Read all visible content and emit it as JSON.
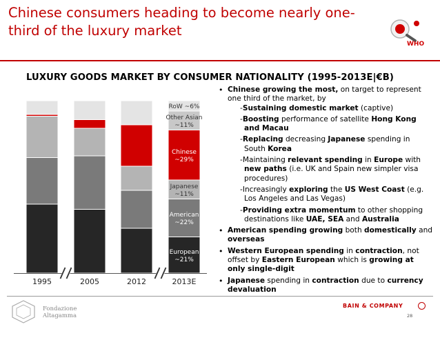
{
  "slide": {
    "title": "Chinese consumers heading to become nearly one-third of the luxury market",
    "logo_text": "WHO",
    "subtitle": "LUXURY GOODS MARKET BY CONSUMER NATIONALITY (1995-2013E|€B)",
    "foundation_line1": "Fondazione",
    "foundation_line2": "Altagamma",
    "brand": "BAIN & COMPANY",
    "page_number": "28"
  },
  "colors": {
    "accent": "#c00000",
    "european": "#262626",
    "american": "#7a7a7a",
    "japanese": "#b4b4b4",
    "chinese": "#d00000",
    "other_asian": "#c8c8c8",
    "row": "#e4e4e4"
  },
  "chart_data": {
    "type": "bar",
    "stacked": true,
    "title": "LUXURY GOODS MARKET BY CONSUMER NATIONALITY (1995-2013E|€B)",
    "categories": [
      "1995",
      "2005",
      "2012",
      "2013E"
    ],
    "axis_breaks": [
      "1995-2005",
      "2012-2013E"
    ],
    "series": [
      {
        "name": "European",
        "label": "European ~21%",
        "color": "#262626",
        "values": [
          40,
          37,
          26,
          21
        ]
      },
      {
        "name": "American",
        "label": "American ~22%",
        "color": "#7a7a7a",
        "values": [
          27,
          31,
          22,
          22
        ]
      },
      {
        "name": "Japanese",
        "label": "Japanese ~11%",
        "color": "#b4b4b4",
        "values": [
          24,
          16,
          14,
          11
        ]
      },
      {
        "name": "Chinese",
        "label": "Chinese ~29%",
        "color": "#d00000",
        "values": [
          1,
          5,
          24,
          29
        ]
      },
      {
        "name": "Other Asian",
        "label": "Other Asian ~11%",
        "color": "#c8c8c8",
        "values": [
          0,
          0,
          0,
          11
        ]
      },
      {
        "name": "RoW",
        "label": "RoW ~6%",
        "color": "#e4e4e4",
        "values": [
          8,
          11,
          14,
          6
        ]
      }
    ]
  },
  "notes": {
    "bullet1": {
      "lead": "Chinese growing the most,",
      "rest": " on target to represent one third of the market, by",
      "subs": [
        {
          "bold": "Sustaining domestic market",
          "text": " (captive)"
        },
        {
          "bold": "Boosting",
          "text": " performance of satellite ",
          "bold2": "Hong Kong and Macau"
        },
        {
          "bold": "Replacing",
          "text": " decreasing ",
          "bold2": "Japanese",
          "text2": " spending in South ",
          "bold3": "Korea"
        },
        {
          "text0": "Maintaining ",
          "bold": "relevant spending",
          "text": " in ",
          "bold2": "Europe",
          "text2": " with ",
          "bold3": "new paths",
          "text3": " (i.e. UK and Spain new simpler visa procedures)"
        },
        {
          "text0": "Increasingly ",
          "bold": "exploring",
          "text": " the ",
          "bold2": "US West Coast",
          "text2": " (e.g. Los Angeles and Las Vegas)"
        },
        {
          "bold": "Providing extra momentum",
          "text": " to other shopping destinations like ",
          "bold2": "UAE, SEA",
          "text2": " and ",
          "bold3": "Australia"
        }
      ]
    },
    "bullet2": {
      "lead": "American spending growing",
      "text": " both ",
      "bold2": "domestically",
      "text2": " and ",
      "bold3": "overseas"
    },
    "bullet3": {
      "lead": "Western European spending",
      "text": " in ",
      "bold2": "contraction",
      "text2": ", not offset by ",
      "bold3": "Eastern European",
      "text3": " which is ",
      "bold4": "growing at only single-digit"
    },
    "bullet4": {
      "lead": "Japanese",
      "text": " spending in ",
      "bold2": "contraction",
      "text2": " due to ",
      "bold3": "currency devaluation"
    }
  }
}
